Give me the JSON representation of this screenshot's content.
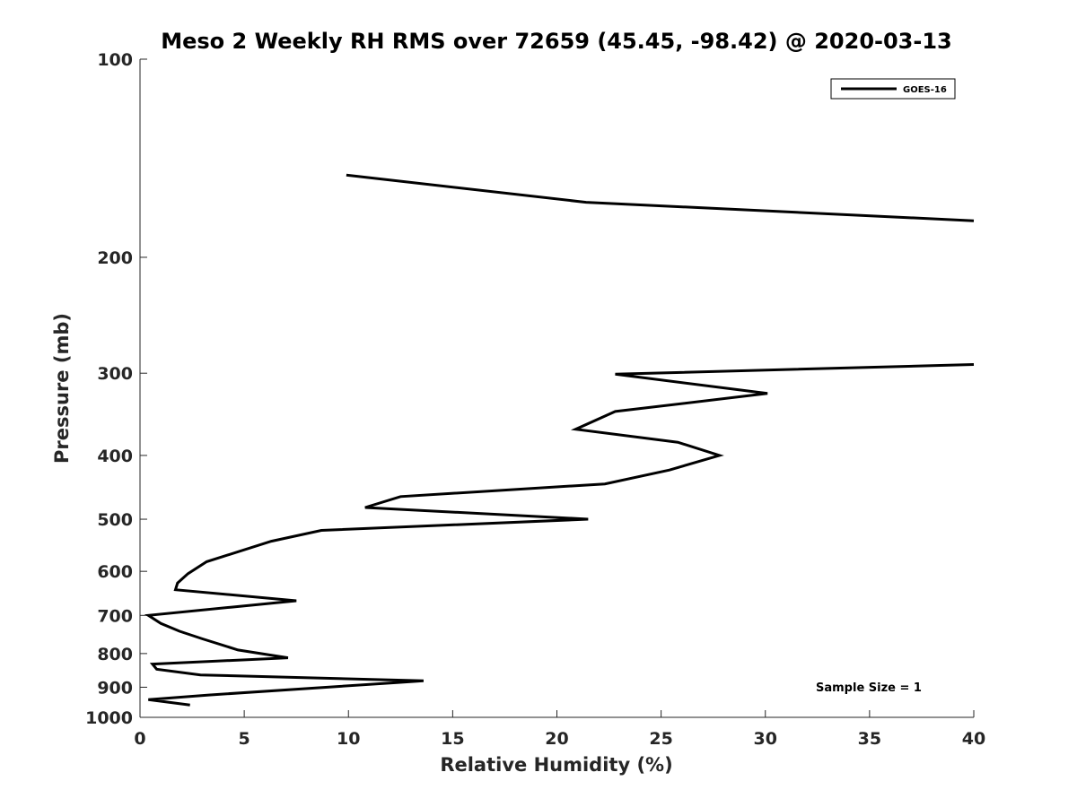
{
  "chart_data": {
    "type": "line",
    "title": "Meso 2 Weekly RH RMS over 72659 (45.45, -98.42) @ 2020-03-13",
    "xlabel": "Relative Humidity (%)",
    "ylabel": "Pressure (mb)",
    "xlim": [
      0,
      40
    ],
    "ylim": [
      100,
      1000
    ],
    "y_scale": "log",
    "y_reversed": true,
    "x_ticks": [
      "0",
      "5",
      "10",
      "15",
      "20",
      "25",
      "30",
      "35",
      "40"
    ],
    "y_ticks": [
      "100",
      "200",
      "300",
      "400",
      "500",
      "600",
      "700",
      "800",
      "900",
      "1000"
    ],
    "grid": false,
    "legend": {
      "position": "top-right",
      "entries": [
        "GOES-16"
      ]
    },
    "annotation": "Sample Size = 1",
    "series": [
      {
        "name": "GOES-16",
        "color": "#000000",
        "segments": [
          [
            [
              9.9,
              150
            ],
            [
              21.4,
              165
            ],
            [
              40.0,
              176
            ]
          ],
          [
            [
              40.0,
              291
            ],
            [
              22.8,
              301
            ],
            [
              30.1,
              322
            ],
            [
              22.8,
              343
            ],
            [
              20.9,
              365
            ],
            [
              25.8,
              382
            ],
            [
              27.8,
              400
            ],
            [
              25.4,
              421
            ],
            [
              22.3,
              442
            ],
            [
              12.5,
              462
            ],
            [
              10.8,
              480
            ],
            [
              21.5,
              500
            ],
            [
              8.7,
              520
            ],
            [
              6.3,
              540
            ],
            [
              3.2,
              580
            ],
            [
              2.3,
              605
            ],
            [
              1.8,
              625
            ],
            [
              1.7,
              640
            ],
            [
              7.5,
              665
            ],
            [
              4.4,
              680
            ],
            [
              0.4,
              700
            ],
            [
              1.0,
              720
            ],
            [
              1.9,
              740
            ],
            [
              3.0,
              760
            ],
            [
              4.7,
              790
            ],
            [
              7.1,
              812
            ],
            [
              0.6,
              830
            ],
            [
              0.8,
              845
            ],
            [
              2.9,
              862
            ],
            [
              13.6,
              880
            ],
            [
              3.3,
              925
            ],
            [
              0.4,
              940
            ],
            [
              2.4,
              958
            ]
          ]
        ]
      }
    ]
  }
}
